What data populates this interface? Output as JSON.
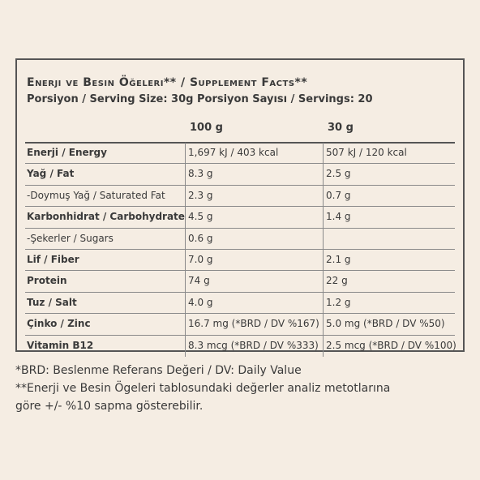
{
  "table": {
    "title": "Enerji ve Besin Öğeleri** / Supplement Facts**",
    "serving": "Porsiyon / Serving Size: 30g Porsiyon Sayısı / Servings: 20",
    "col_100": "100 g",
    "col_30": "30 g",
    "rows": [
      {
        "name": "Enerji / Energy",
        "v100": "1,697 kJ / 403 kcal",
        "v30": "507 kJ / 120 kcal",
        "bold": true
      },
      {
        "name": "Yağ / Fat",
        "v100": "8.3 g",
        "v30": "2.5 g",
        "bold": true
      },
      {
        "name": "-Doymuş Yağ / Saturated Fat",
        "v100": "2.3 g",
        "v30": "0.7 g",
        "bold": false
      },
      {
        "name": "Karbonhidrat / Carbohydrate",
        "v100": "4.5 g",
        "v30": "1.4 g",
        "bold": true
      },
      {
        "name": "-Şekerler / Sugars",
        "v100": "0.6 g",
        "v30": "",
        "bold": false
      },
      {
        "name": "Lif / Fiber",
        "v100": "7.0 g",
        "v30": "2.1 g",
        "bold": true
      },
      {
        "name": "Protein",
        "v100": "74 g",
        "v30": "22 g",
        "bold": true
      },
      {
        "name": "Tuz / Salt",
        "v100": "4.0 g",
        "v30": "1.2 g",
        "bold": true
      },
      {
        "name": "Çinko / Zinc",
        "v100": "16.7 mg (*BRD / DV %167)",
        "v30": "5.0 mg (*BRD / DV %50)",
        "bold": true
      },
      {
        "name": "Vitamin B12",
        "v100": "8.3 mcg (*BRD / DV %333)",
        "v30": "2.5 mcg (*BRD / DV %100)",
        "bold": true
      }
    ]
  },
  "footnotes": {
    "line1": "*BRD: Beslenme Referans Değeri / DV: Daily Value",
    "line2": "**Enerji ve Besin Ögeleri tablosundaki değerler analiz metotlarına",
    "line3": "göre +/- %10 sapma gösterebilir."
  },
  "colors": {
    "background": "#f5ede3",
    "text": "#3a3a3a",
    "border": "#555555"
  }
}
